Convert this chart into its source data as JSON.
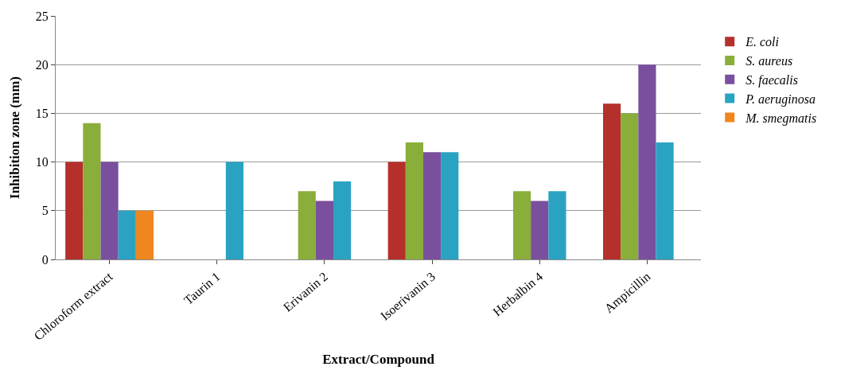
{
  "chart_data": {
    "type": "bar",
    "xlabel": "Extract/Compound",
    "ylabel": "Inhibition zone (mm)",
    "categories": [
      "Chloroform extract",
      "Taurin 1",
      "Erivanin 2",
      "Isoerivanin 3",
      "Herbalbin 4",
      "Ampicillin"
    ],
    "series": [
      {
        "name": "E. coli",
        "color": "#b5302a",
        "values": [
          10,
          null,
          null,
          10,
          null,
          16
        ]
      },
      {
        "name": "S. aureus",
        "color": "#8aae3a",
        "values": [
          14,
          null,
          7,
          12,
          7,
          15
        ]
      },
      {
        "name": "S. faecalis",
        "color": "#7a4f9e",
        "values": [
          10,
          null,
          6,
          11,
          6,
          20
        ]
      },
      {
        "name": "P. aeruginosa",
        "color": "#2aa3c2",
        "values": [
          5,
          10,
          8,
          11,
          7,
          12
        ]
      },
      {
        "name": "M. smegmatis",
        "color": "#f0861e",
        "values": [
          5,
          null,
          null,
          null,
          null,
          null
        ]
      }
    ],
    "ylim": [
      0,
      25
    ],
    "yticks": [
      0,
      5,
      10,
      15,
      20,
      25
    ],
    "grid": "y",
    "legend": "right"
  }
}
